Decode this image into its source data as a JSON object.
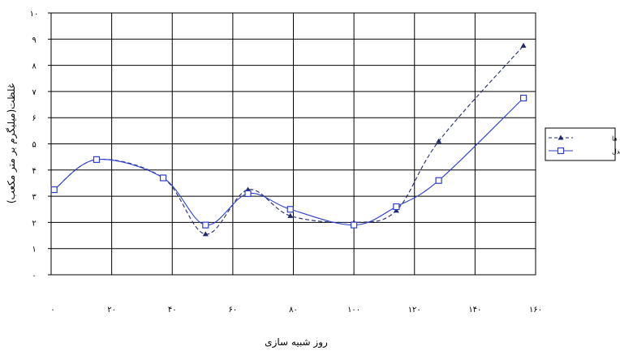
{
  "chart_data": {
    "type": "line",
    "xlabel": "روز شبیه سازی",
    "ylabel": "غلظت(میلیگرم بر متر مکعب)",
    "xlim": [
      0,
      160
    ],
    "ylim": [
      0,
      10
    ],
    "x_ticks": [
      0,
      20,
      40,
      60,
      80,
      100,
      120,
      140,
      160
    ],
    "x_tick_labels": [
      "۰",
      "۲۰",
      "۴۰",
      "۶۰",
      "۸۰",
      "۱۰۰",
      "۱۲۰",
      "۱۴۰",
      "۱۶۰"
    ],
    "y_ticks": [
      0,
      1,
      2,
      3,
      4,
      5,
      6,
      7,
      8,
      9,
      10
    ],
    "y_tick_labels": [
      "۰",
      "۱",
      "۲",
      "۳",
      "۴",
      "۵",
      "۶",
      "۷",
      "۸",
      "۹",
      "۱۰"
    ],
    "grid": true,
    "legend_position": "right",
    "series": [
      {
        "name": "داده ها",
        "style": "dashed",
        "marker": "triangle",
        "color": "#1f2a6b",
        "points": [
          [
            1,
            3.25
          ],
          [
            15,
            4.4
          ],
          [
            37,
            3.7
          ],
          [
            51,
            1.55
          ],
          [
            65,
            3.25
          ],
          [
            79,
            2.25
          ],
          [
            100,
            2.0
          ],
          [
            114,
            2.45
          ],
          [
            128,
            5.1
          ],
          [
            156,
            8.75
          ]
        ]
      },
      {
        "name": "نتایج مدل",
        "style": "solid",
        "marker": "square",
        "color": "#2a3fd0",
        "points": [
          [
            1,
            3.25
          ],
          [
            15,
            4.4
          ],
          [
            37,
            3.7
          ],
          [
            51,
            1.9
          ],
          [
            65,
            3.1
          ],
          [
            79,
            2.5
          ],
          [
            100,
            1.9
          ],
          [
            114,
            2.6
          ],
          [
            128,
            3.6
          ],
          [
            156,
            6.75
          ]
        ]
      }
    ]
  }
}
